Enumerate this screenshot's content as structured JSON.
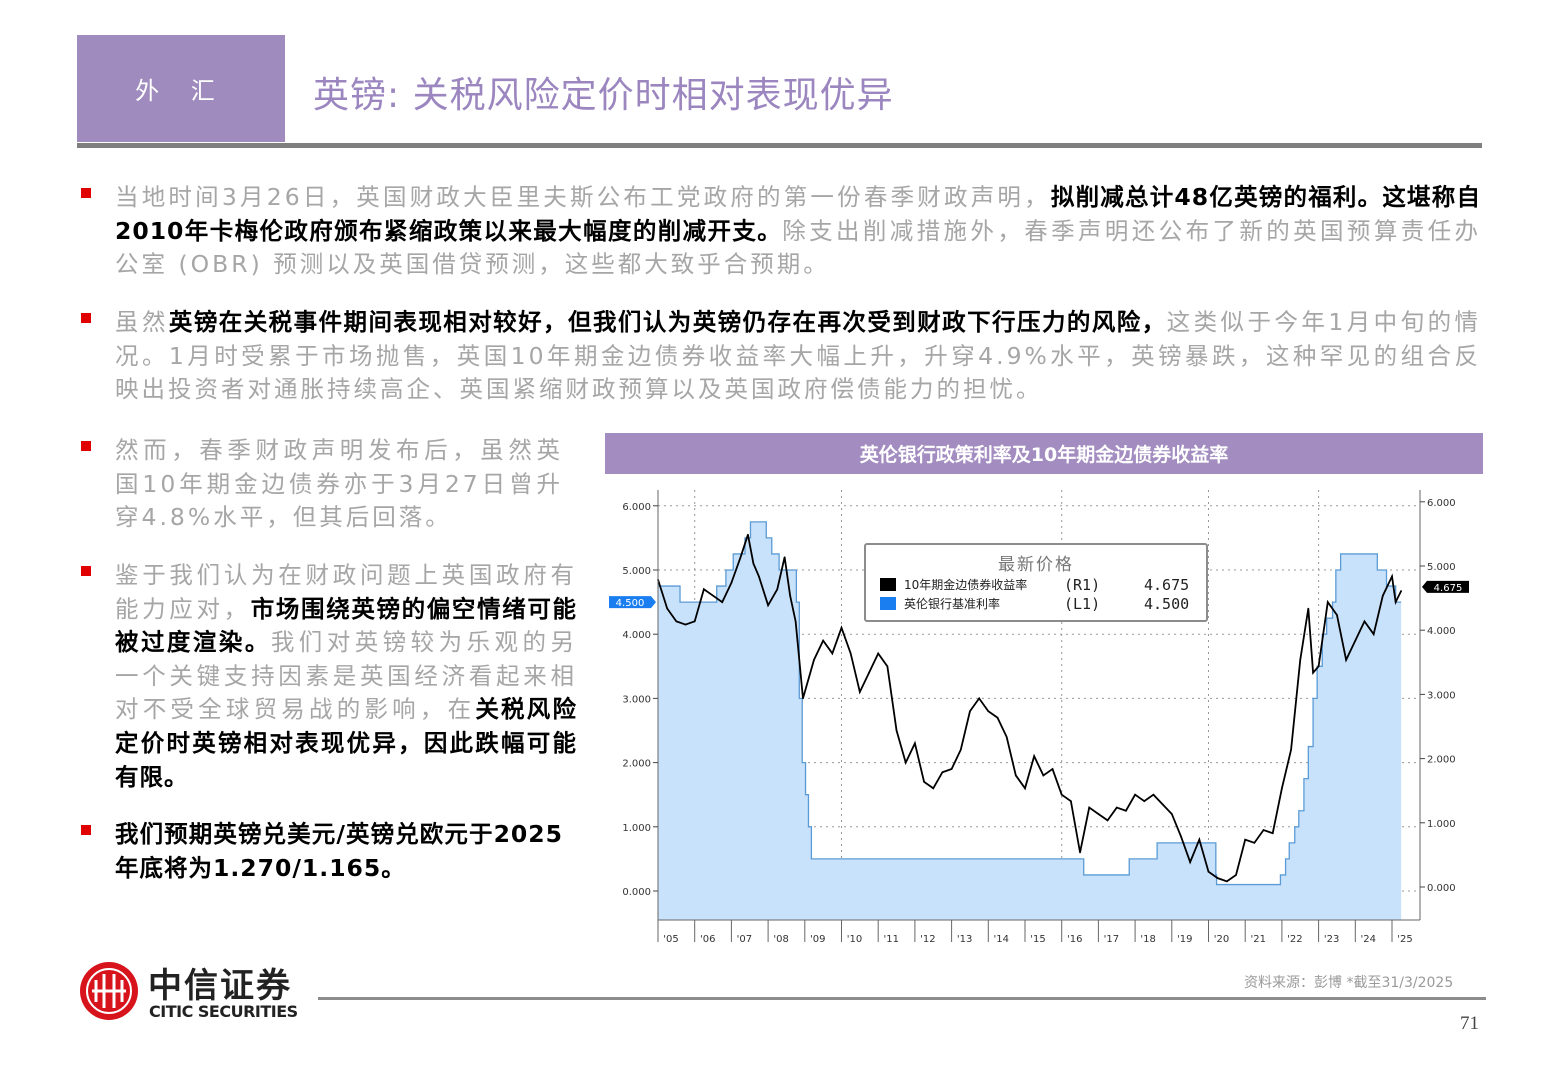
{
  "header": {
    "section": "外 汇",
    "title": "英镑: 关税风险定价时相对表现优异"
  },
  "bullets": [
    {
      "segments": [
        {
          "text": "当地时间3月26日，英国财政大臣里夫斯公布工党政府的第一份春季财政声明，",
          "bold": false
        },
        {
          "text": "拟削减总计48亿英镑的福利。这堪称自2010年卡梅伦政府颁布紧缩政策以来最大幅度的削减开支。",
          "bold": true
        },
        {
          "text": "除支出削减措施外，春季声明还公布了新的英国预算责任办公室 (OBR) 预测以及英国借贷预测，这些都大致乎合预期。",
          "bold": false
        }
      ]
    },
    {
      "segments": [
        {
          "text": "虽然",
          "bold": false
        },
        {
          "text": "英镑在关税事件期间表现相对较好，但我们认为英镑仍存在再次受到财政下行压力的风险，",
          "bold": true
        },
        {
          "text": "这类似于今年1月中旬的情况。1月时受累于市场抛售，英国10年期金边债券收益率大幅上升，升穿4.9%水平，英镑暴跌，这种罕见的组合反映出投资者对通胀持续高企、英国紧缩财政预算以及英国政府偿债能力的担忧。",
          "bold": false
        }
      ]
    },
    {
      "segments": [
        {
          "text": "然而，春季财政声明发布后，虽然英国10年期金边债券亦于3月27日曾升穿4.8%水平，但其后回落。",
          "bold": false
        }
      ]
    },
    {
      "segments": [
        {
          "text": "鉴于我们认为在财政问题上英国政府有能力应对，",
          "bold": false
        },
        {
          "text": "市场围绕英镑的偏空情绪可能被过度渲染。",
          "bold": true
        },
        {
          "text": "我们对英镑较为乐观的另一个关键支持因素是英国经济看起来相对不受全球贸易战的影响，在",
          "bold": false
        },
        {
          "text": "关税风险定价时英镑相对表现优异，因此跌幅可能有限。",
          "bold": true
        }
      ]
    },
    {
      "segments": [
        {
          "text": "我们预期英镑兑美元/英镑兑欧元于2025年底将为1.270/1.165。",
          "bold": true
        }
      ]
    }
  ],
  "chart_data": {
    "type": "line",
    "title": "英伦银行政策利率及10年期金边债券收益率",
    "legend_title": "最新价格",
    "legend_placement": "top-center",
    "grid": true,
    "x_tick_labels": [
      "'05",
      "'06",
      "'07",
      "'08",
      "'09",
      "'10",
      "'11",
      "'12",
      "'13",
      "'14",
      "'15",
      "'16",
      "'17",
      "'18",
      "'19",
      "'20",
      "'21",
      "'22",
      "'23",
      "'24",
      "'25"
    ],
    "y_tick_labels": [
      "0.000",
      "1.000",
      "2.000",
      "3.000",
      "4.000",
      "5.000",
      "6.000"
    ],
    "ylim": [
      0,
      6.3
    ],
    "xlim": [
      2005,
      2025.3
    ],
    "series": [
      {
        "name": "10年期金边债券收益率",
        "axis": "R1",
        "last": "4.675",
        "color": "#000000",
        "style": "line",
        "x": [
          2005.0,
          2005.25,
          2005.5,
          2005.75,
          2006.0,
          2006.25,
          2006.5,
          2006.75,
          2007.0,
          2007.25,
          2007.45,
          2007.6,
          2007.75,
          2008.0,
          2008.25,
          2008.45,
          2008.6,
          2008.75,
          2008.95,
          2009.0,
          2009.25,
          2009.5,
          2009.75,
          2010.0,
          2010.25,
          2010.5,
          2010.75,
          2011.0,
          2011.25,
          2011.5,
          2011.75,
          2012.0,
          2012.25,
          2012.5,
          2012.75,
          2013.0,
          2013.25,
          2013.5,
          2013.75,
          2014.0,
          2014.25,
          2014.5,
          2014.75,
          2015.0,
          2015.25,
          2015.5,
          2015.75,
          2016.0,
          2016.25,
          2016.5,
          2016.75,
          2017.0,
          2017.25,
          2017.5,
          2017.75,
          2018.0,
          2018.25,
          2018.5,
          2018.75,
          2019.0,
          2019.25,
          2019.5,
          2019.75,
          2020.0,
          2020.25,
          2020.5,
          2020.75,
          2021.0,
          2021.25,
          2021.5,
          2021.75,
          2022.0,
          2022.25,
          2022.5,
          2022.72,
          2022.85,
          2023.0,
          2023.25,
          2023.5,
          2023.75,
          2024.0,
          2024.25,
          2024.5,
          2024.75,
          2025.0,
          2025.1,
          2025.25
        ],
        "y": [
          4.85,
          4.4,
          4.2,
          4.15,
          4.2,
          4.7,
          4.6,
          4.5,
          4.8,
          5.2,
          5.55,
          5.1,
          4.9,
          4.45,
          4.7,
          5.2,
          4.6,
          4.2,
          3.0,
          3.1,
          3.6,
          3.9,
          3.7,
          4.1,
          3.7,
          3.1,
          3.4,
          3.7,
          3.5,
          2.5,
          2.0,
          2.3,
          1.7,
          1.6,
          1.85,
          1.9,
          2.2,
          2.8,
          3.0,
          2.8,
          2.7,
          2.4,
          1.8,
          1.6,
          2.1,
          1.8,
          1.9,
          1.5,
          1.4,
          0.6,
          1.3,
          1.2,
          1.1,
          1.3,
          1.25,
          1.5,
          1.4,
          1.5,
          1.35,
          1.2,
          0.85,
          0.45,
          0.8,
          0.3,
          0.2,
          0.15,
          0.25,
          0.8,
          0.75,
          0.95,
          0.9,
          1.6,
          2.2,
          3.6,
          4.4,
          3.4,
          3.5,
          4.5,
          4.3,
          3.6,
          3.9,
          4.2,
          4.0,
          4.6,
          4.9,
          4.5,
          4.675
        ]
      },
      {
        "name": "英伦银行基准利率",
        "axis": "L1",
        "last": "4.500",
        "color": "#5b9bd5",
        "fill": "#c9e2fb",
        "style": "step",
        "x": [
          2005.0,
          2005.6,
          2006.6,
          2006.85,
          2007.05,
          2007.37,
          2007.52,
          2007.95,
          2008.1,
          2008.3,
          2008.77,
          2008.85,
          2008.93,
          2009.02,
          2009.1,
          2009.18,
          2016.6,
          2017.84,
          2018.6,
          2020.2,
          2020.22,
          2021.96,
          2022.1,
          2022.2,
          2022.35,
          2022.46,
          2022.6,
          2022.72,
          2022.85,
          2022.96,
          2023.1,
          2023.22,
          2023.38,
          2023.47,
          2023.6,
          2024.6,
          2024.85,
          2025.1,
          2025.25
        ],
        "y": [
          4.75,
          4.5,
          4.75,
          5.0,
          5.25,
          5.5,
          5.75,
          5.5,
          5.25,
          5.0,
          4.5,
          3.0,
          2.0,
          1.5,
          1.0,
          0.5,
          0.25,
          0.5,
          0.75,
          0.25,
          0.1,
          0.25,
          0.5,
          0.75,
          1.0,
          1.25,
          1.75,
          2.25,
          3.0,
          3.5,
          4.0,
          4.25,
          4.5,
          5.0,
          5.25,
          5.0,
          4.75,
          4.5,
          4.5
        ]
      }
    ]
  },
  "footer": {
    "source": "资料来源：彭博   *截至31/3/2025",
    "page": "71",
    "logo_cn": "中信证券",
    "logo_en": "CITIC SECURITIES"
  }
}
